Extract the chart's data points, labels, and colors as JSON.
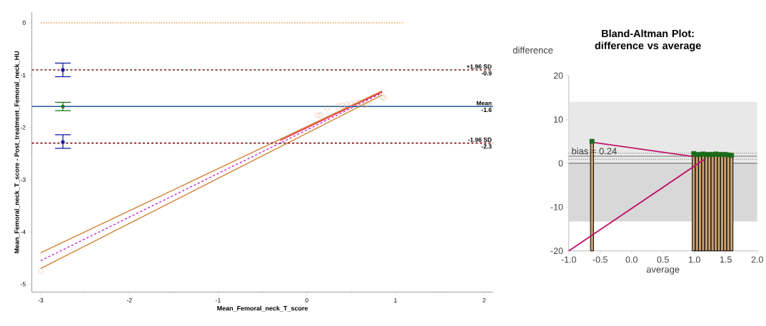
{
  "chart_data": [
    {
      "type": "scatter",
      "xlabel": "Mean_Femoral_neck_T_score",
      "ylabel": "Mean_Femoral_neck_T_score - Post_treatment_Femoral_neck_HU",
      "xlim": [
        -3.1,
        2.1
      ],
      "ylim": [
        -5.15,
        0.2
      ],
      "xticks": [
        -3,
        -2,
        -1,
        0,
        1,
        2
      ],
      "yticks": [
        -5,
        -4,
        -3,
        -2,
        -1,
        0
      ],
      "series": [
        {
          "type": "line",
          "color": "#e8a050",
          "line_style": "dotted",
          "x": [
            -3.0,
            1.1
          ],
          "values": [
            0,
            0
          ]
        },
        {
          "type": "scatter",
          "marker": "none",
          "color": "#1a1aa8",
          "x": [
            -2.75,
            -2.75
          ],
          "values": [
            -0.9,
            -2.28
          ],
          "errors": [
            [
              -1.03,
              -0.77
            ],
            [
              -2.4,
              -2.14
            ]
          ]
        },
        {
          "type": "scatter",
          "marker": "none",
          "color": "#1a7a1a",
          "x": [
            -2.75
          ],
          "values": [
            -1.6
          ],
          "errors": [
            [
              -1.68,
              -1.52
            ]
          ]
        },
        {
          "type": "line",
          "color": "#d08030",
          "line_style": "solid",
          "x": [
            -3.0,
            0.85
          ],
          "values": [
            -4.4,
            -1.3
          ]
        },
        {
          "type": "line",
          "color": "#d08030",
          "line_style": "solid",
          "x": [
            -3.0,
            0.85
          ],
          "values": [
            -4.7,
            -1.38
          ]
        },
        {
          "type": "line",
          "color": "#c020d0",
          "line_style": "dashed",
          "x": [
            -3.0,
            0.85
          ],
          "values": [
            -4.55,
            -1.34
          ]
        },
        {
          "type": "line",
          "color": "#e02030",
          "line_style": "solid",
          "x": [
            -0.3,
            0.85
          ],
          "values": [
            -2.25,
            -1.32
          ]
        },
        {
          "type": "scatter",
          "marker": "circle",
          "color": "#e0a070",
          "x": [
            -3.0,
            0.12,
            0.15,
            0.23,
            0.35,
            0.4,
            0.45,
            0.5,
            0.55,
            0.6,
            0.62,
            0.65,
            0.68,
            0.85,
            0.87
          ],
          "values": [
            -4.75,
            -1.77,
            -1.77,
            -1.63,
            -1.6,
            -1.58,
            -1.57,
            -1.55,
            -1.53,
            -1.52,
            -1.55,
            -1.57,
            -1.55,
            -1.42,
            -1.44
          ]
        }
      ],
      "ref_lines": [
        {
          "axis": "y",
          "value": -0.9,
          "label": "+1.96 SD",
          "color": "#7a1010",
          "line_style": "dashed"
        },
        {
          "axis": "y",
          "value": -1.6,
          "label": "Mean",
          "color": "#1f5a9a",
          "line_style": "solid"
        },
        {
          "axis": "y",
          "value": -2.3,
          "label": "-1.96 SD",
          "color": "#7a1010",
          "line_style": "dashed"
        }
      ],
      "annotations": [
        {
          "text": "-0.9",
          "y": -0.9
        },
        {
          "text": "-1.6",
          "y": -1.6
        },
        {
          "text": "-2.3",
          "y": -2.3
        }
      ]
    },
    {
      "type": "bar",
      "title": "Bland-Altman Plot: difference vs average",
      "xlabel": "average",
      "ylabel": "difference",
      "xlim": [
        -1,
        2
      ],
      "ylim": [
        -20,
        20
      ],
      "xticks": [
        {
          "value": -1,
          "label": "-1.0"
        },
        {
          "value": -0.5,
          "label": "-0.5"
        },
        {
          "value": 0,
          "label": "0.0"
        },
        {
          "value": 0.5,
          "label": "0.5"
        },
        {
          "value": 1,
          "label": "1.0"
        },
        {
          "value": 1.5,
          "label": "1.5"
        },
        {
          "value": 2,
          "label": "2.0"
        }
      ],
      "yticks": [
        -20,
        -10,
        0,
        10,
        20
      ],
      "x": [
        -0.63,
        0.99,
        1.04,
        1.09,
        1.14,
        1.19,
        1.24,
        1.29,
        1.34,
        1.39,
        1.44,
        1.49,
        1.54,
        1.59
      ],
      "series": [
        {
          "type": "bar",
          "color": "#c8a070",
          "values": [
            25.0,
            22.2,
            22.0,
            22.0,
            22.1,
            22.0,
            22.0,
            22.0,
            22.1,
            22.0,
            22.0,
            22.0,
            21.9,
            21.8
          ],
          "base": [
            -20,
            -20,
            -20,
            -20,
            -20,
            -20,
            -20,
            -20,
            -20,
            -20,
            -20,
            -20,
            -20,
            -20
          ]
        },
        {
          "type": "scatter",
          "marker": "square",
          "color": "#1a6b1a",
          "values": [
            5.0,
            2.2,
            2.0,
            2.0,
            2.1,
            2.0,
            2.0,
            2.0,
            2.1,
            2.0,
            2.0,
            2.0,
            1.9,
            1.8
          ]
        },
        {
          "type": "line",
          "color": "#c0186a",
          "line_style": "solid",
          "x": [
            -0.63,
            1.0
          ],
          "values": [
            4.8,
            1.5
          ]
        },
        {
          "type": "line",
          "color": "#c0186a",
          "line_style": "solid",
          "x": [
            -1.0,
            1.15
          ],
          "values": [
            -20,
            0.8
          ]
        }
      ],
      "bands": [
        {
          "axis": "y",
          "from": 0,
          "to": 14,
          "color": "#e8e8e8"
        },
        {
          "axis": "y",
          "from": -13.3,
          "to": 0,
          "color": "#d8d8d8"
        }
      ],
      "ref_lines": [
        {
          "axis": "y",
          "value": 0,
          "color": "#999999",
          "line_style": "solid"
        },
        {
          "axis": "y",
          "value": 0.9,
          "color": "#555555",
          "line_style": "dotted"
        },
        {
          "axis": "y",
          "value": 1.6,
          "color": "#999999",
          "line_style": "solid"
        },
        {
          "axis": "y",
          "value": 2.3,
          "color": "#555555",
          "line_style": "dotted"
        }
      ],
      "annotations": [
        "bias = 0.24"
      ]
    }
  ]
}
